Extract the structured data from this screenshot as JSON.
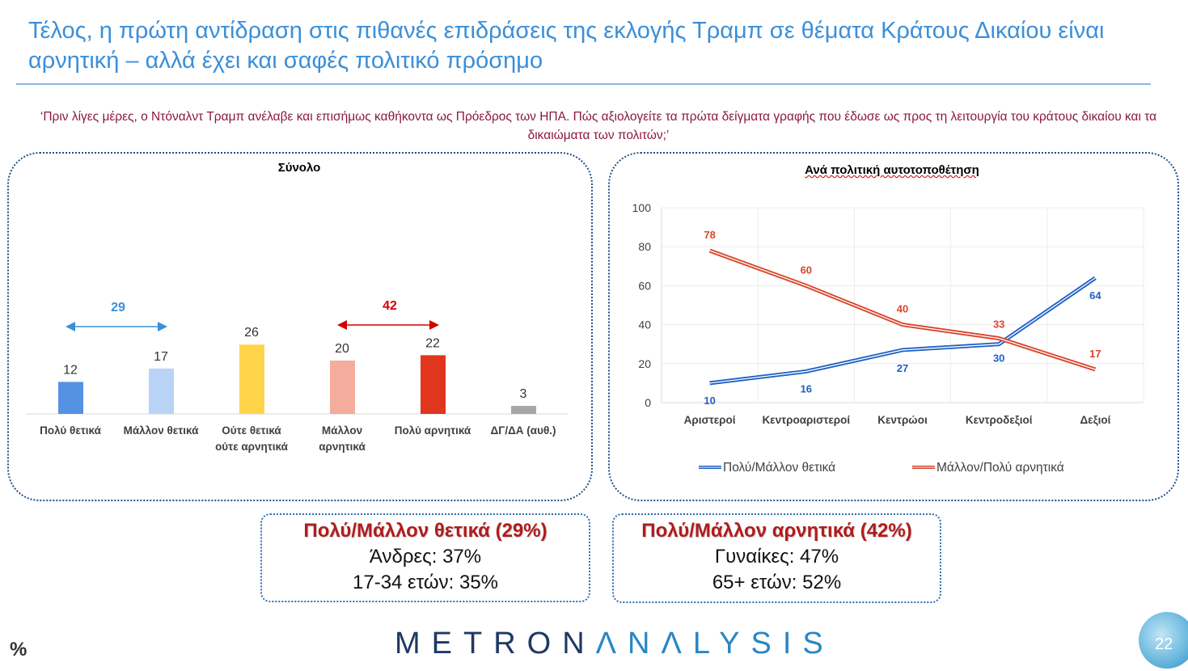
{
  "title": "Τέλος, η πρώτη αντίδραση στις πιθανές επιδράσεις της εκλογής Τραμπ σε θέματα Κράτους Δικαίου είναι αρνητική – αλλά έχει και σαφές πολιτικό πρόσημο",
  "question": "‘Πριν λίγες μέρες, ο Ντόναλντ Τραμπ ανέλαβε και επισήμως καθήκοντα ως Πρόεδρος των ΗΠΑ. Πώς αξιολογείτε τα πρώτα δείγματα γραφής που έδωσε ως προς τη λειτουργία του κράτους δικαίου και τα δικαιώματα των πολιτών;’",
  "chart_data": [
    {
      "type": "bar",
      "title": "Σύνολο",
      "categories": [
        "Πολύ θετικά",
        "Μάλλον θετικά",
        "Ούτε θετικά ούτε αρνητικά",
        "Μάλλον αρνητικά",
        "Πολύ αρνητικά",
        "ΔΓ/ΔΑ (αυθ.)"
      ],
      "category_lines": [
        [
          "Πολύ θετικά"
        ],
        [
          "Μάλλον θετικά"
        ],
        [
          "Ούτε θετικά",
          "ούτε αρνητικά"
        ],
        [
          "Μάλλον",
          "αρνητικά"
        ],
        [
          "Πολύ αρνητικά"
        ],
        [
          "ΔΓ/ΔΑ (αυθ.)"
        ]
      ],
      "values": [
        12,
        17,
        26,
        20,
        22,
        3
      ],
      "colors": [
        "#5592e4",
        "#b9d3f7",
        "#ffd44b",
        "#f4ac9d",
        "#e0361e",
        "#a6a6a6"
      ],
      "annotations": [
        {
          "label": "29",
          "span": [
            0,
            1
          ],
          "color": "#3b8fd9"
        },
        {
          "label": "42",
          "span": [
            3,
            4
          ],
          "color": "#d40000"
        }
      ],
      "ylim": [
        0,
        30
      ]
    },
    {
      "type": "line",
      "title": "Ανά πολιτική αυτοτοποθέτηση",
      "categories": [
        "Αριστεροί",
        "Κεντροαριστεροί",
        "Κεντρώοι",
        "Κεντροδεξιοί",
        "Δεξιοί"
      ],
      "series": [
        {
          "name": "Πολύ/Μάλλον θετικά",
          "values": [
            10,
            16,
            27,
            30,
            64
          ],
          "color": "#1f5fc4"
        },
        {
          "name": "Μάλλον/Πολύ αρνητικά",
          "values": [
            78,
            60,
            40,
            33,
            17
          ],
          "color": "#d9452b"
        }
      ],
      "yticks": [
        0,
        20,
        40,
        60,
        80,
        100
      ],
      "ylim": [
        0,
        100
      ],
      "grid": true,
      "legend": "bottom"
    }
  ],
  "summary_positive": {
    "heading": "Πολύ/Μάλλον θετικά (29%)",
    "lines": [
      "Άνδρες: 37%",
      "17-34 ετών: 35%"
    ]
  },
  "summary_negative": {
    "heading": "Πολύ/Μάλλον αρνητικά (42%)",
    "lines": [
      "Γυναίκες: 47%",
      "65+ ετών: 52%"
    ]
  },
  "logo": {
    "part1": "METRON",
    "part2": "ΛNΛLYSIS"
  },
  "unit": "%",
  "page_number": "22"
}
